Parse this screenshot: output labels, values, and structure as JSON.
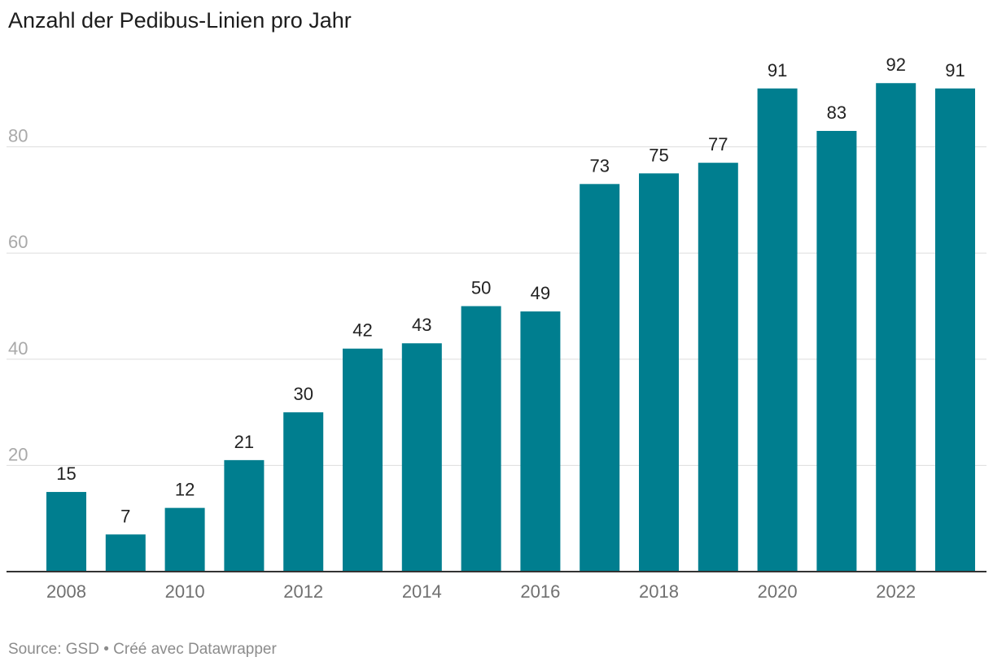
{
  "title": "Anzahl der Pedibus-Linien pro Jahr",
  "footer": {
    "text": "Source: GSD • Créé avec Datawrapper"
  },
  "colors": {
    "bar": "#007e8f",
    "grid": "#dddddd",
    "baseline": "#333333"
  },
  "chart_data": {
    "type": "bar",
    "title": "Anzahl der Pedibus-Linien pro Jahr",
    "categories": [
      "2008",
      "2009",
      "2010",
      "2011",
      "2012",
      "2013",
      "2014",
      "2015",
      "2016",
      "2017",
      "2018",
      "2019",
      "2020",
      "2021",
      "2022",
      "2023"
    ],
    "values": [
      15,
      7,
      12,
      21,
      30,
      42,
      43,
      50,
      49,
      73,
      75,
      77,
      91,
      83,
      92,
      91
    ],
    "x_tick_labels": [
      "2008",
      "2010",
      "2012",
      "2014",
      "2016",
      "2018",
      "2020",
      "2022"
    ],
    "y_ticks": [
      20,
      40,
      60,
      80
    ],
    "ylim": [
      0,
      92
    ],
    "xlabel": "",
    "ylabel": "",
    "grid": true,
    "data_labels": true
  }
}
